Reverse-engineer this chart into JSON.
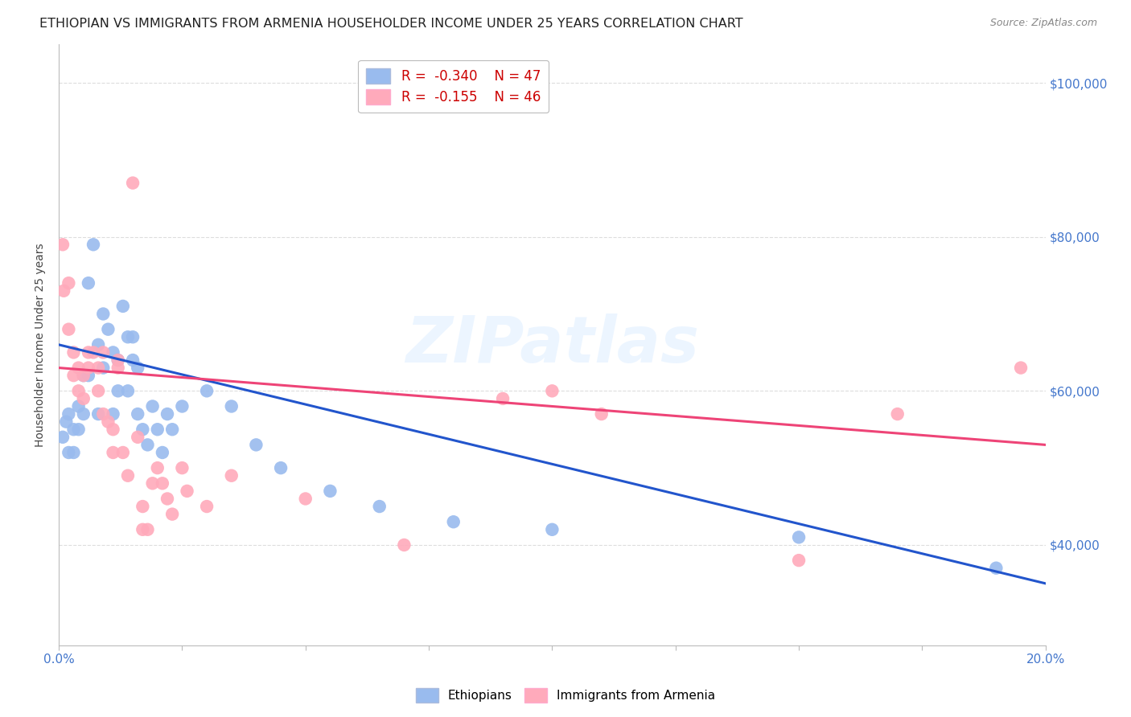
{
  "title": "ETHIOPIAN VS IMMIGRANTS FROM ARMENIA HOUSEHOLDER INCOME UNDER 25 YEARS CORRELATION CHART",
  "source": "Source: ZipAtlas.com",
  "ylabel": "Householder Income Under 25 years",
  "xlim": [
    0.0,
    0.2
  ],
  "ylim": [
    27000,
    105000
  ],
  "yticks": [
    40000,
    60000,
    80000,
    100000
  ],
  "ytick_labels": [
    "$40,000",
    "$60,000",
    "$80,000",
    "$100,000"
  ],
  "blue_color": "#99bbee",
  "pink_color": "#ffaabb",
  "line_blue": "#2255cc",
  "line_pink": "#ee4477",
  "blue_scatter": [
    [
      0.0008,
      54000
    ],
    [
      0.0015,
      56000
    ],
    [
      0.002,
      52000
    ],
    [
      0.002,
      57000
    ],
    [
      0.003,
      55000
    ],
    [
      0.003,
      52000
    ],
    [
      0.004,
      58000
    ],
    [
      0.004,
      55000
    ],
    [
      0.005,
      62000
    ],
    [
      0.005,
      57000
    ],
    [
      0.006,
      74000
    ],
    [
      0.006,
      62000
    ],
    [
      0.007,
      79000
    ],
    [
      0.008,
      66000
    ],
    [
      0.008,
      57000
    ],
    [
      0.009,
      70000
    ],
    [
      0.009,
      63000
    ],
    [
      0.01,
      68000
    ],
    [
      0.011,
      65000
    ],
    [
      0.011,
      57000
    ],
    [
      0.012,
      64000
    ],
    [
      0.012,
      60000
    ],
    [
      0.013,
      71000
    ],
    [
      0.014,
      67000
    ],
    [
      0.014,
      60000
    ],
    [
      0.015,
      67000
    ],
    [
      0.015,
      64000
    ],
    [
      0.016,
      63000
    ],
    [
      0.016,
      57000
    ],
    [
      0.017,
      55000
    ],
    [
      0.018,
      53000
    ],
    [
      0.019,
      58000
    ],
    [
      0.02,
      55000
    ],
    [
      0.021,
      52000
    ],
    [
      0.022,
      57000
    ],
    [
      0.023,
      55000
    ],
    [
      0.025,
      58000
    ],
    [
      0.03,
      60000
    ],
    [
      0.035,
      58000
    ],
    [
      0.04,
      53000
    ],
    [
      0.045,
      50000
    ],
    [
      0.055,
      47000
    ],
    [
      0.065,
      45000
    ],
    [
      0.08,
      43000
    ],
    [
      0.1,
      42000
    ],
    [
      0.15,
      41000
    ],
    [
      0.19,
      37000
    ]
  ],
  "pink_scatter": [
    [
      0.0008,
      79000
    ],
    [
      0.001,
      73000
    ],
    [
      0.002,
      74000
    ],
    [
      0.002,
      68000
    ],
    [
      0.003,
      65000
    ],
    [
      0.003,
      62000
    ],
    [
      0.004,
      63000
    ],
    [
      0.004,
      60000
    ],
    [
      0.005,
      62000
    ],
    [
      0.005,
      59000
    ],
    [
      0.006,
      65000
    ],
    [
      0.006,
      63000
    ],
    [
      0.007,
      65000
    ],
    [
      0.008,
      63000
    ],
    [
      0.008,
      60000
    ],
    [
      0.009,
      65000
    ],
    [
      0.009,
      57000
    ],
    [
      0.01,
      56000
    ],
    [
      0.011,
      55000
    ],
    [
      0.011,
      52000
    ],
    [
      0.012,
      64000
    ],
    [
      0.012,
      63000
    ],
    [
      0.013,
      52000
    ],
    [
      0.014,
      49000
    ],
    [
      0.015,
      87000
    ],
    [
      0.016,
      54000
    ],
    [
      0.017,
      45000
    ],
    [
      0.017,
      42000
    ],
    [
      0.018,
      42000
    ],
    [
      0.019,
      48000
    ],
    [
      0.02,
      50000
    ],
    [
      0.021,
      48000
    ],
    [
      0.022,
      46000
    ],
    [
      0.023,
      44000
    ],
    [
      0.025,
      50000
    ],
    [
      0.026,
      47000
    ],
    [
      0.03,
      45000
    ],
    [
      0.035,
      49000
    ],
    [
      0.05,
      46000
    ],
    [
      0.07,
      40000
    ],
    [
      0.09,
      59000
    ],
    [
      0.1,
      60000
    ],
    [
      0.11,
      57000
    ],
    [
      0.15,
      38000
    ],
    [
      0.17,
      57000
    ],
    [
      0.195,
      63000
    ]
  ],
  "blue_line_x": [
    0.0,
    0.2
  ],
  "blue_line_y": [
    66000,
    35000
  ],
  "pink_line_x": [
    0.0,
    0.2
  ],
  "pink_line_y": [
    63000,
    53000
  ],
  "watermark": "ZIPatlas",
  "background_color": "#ffffff",
  "grid_color": "#dddddd",
  "axis_color": "#4477cc",
  "title_fontsize": 11.5,
  "axis_label_fontsize": 10,
  "tick_fontsize": 11
}
